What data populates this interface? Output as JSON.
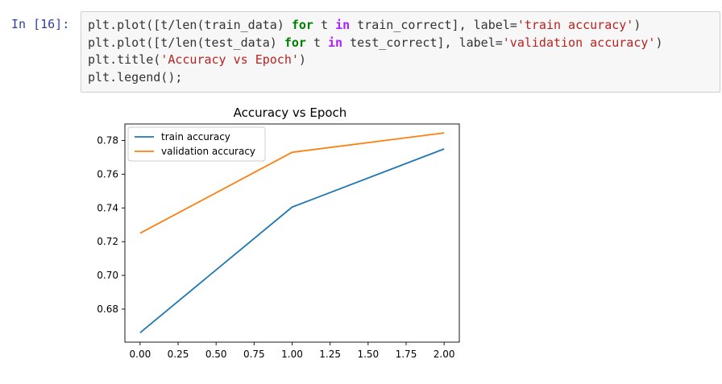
{
  "cell": {
    "prompt": "In [16]:",
    "code_lines": [
      [
        {
          "t": "plt.plot([t/",
          "c": "plain"
        },
        {
          "t": "len",
          "c": "plain"
        },
        {
          "t": "(train_data) ",
          "c": "plain"
        },
        {
          "t": "for",
          "c": "kw"
        },
        {
          "t": " t ",
          "c": "plain"
        },
        {
          "t": "in",
          "c": "op"
        },
        {
          "t": " train_correct], label=",
          "c": "plain"
        },
        {
          "t": "'train accuracy'",
          "c": "str"
        },
        {
          "t": ")",
          "c": "plain"
        }
      ],
      [
        {
          "t": "plt.plot([t/",
          "c": "plain"
        },
        {
          "t": "len",
          "c": "plain"
        },
        {
          "t": "(test_data) ",
          "c": "plain"
        },
        {
          "t": "for",
          "c": "kw"
        },
        {
          "t": " t ",
          "c": "plain"
        },
        {
          "t": "in",
          "c": "op"
        },
        {
          "t": " test_correct], label=",
          "c": "plain"
        },
        {
          "t": "'validation accuracy'",
          "c": "str"
        },
        {
          "t": ")",
          "c": "plain"
        }
      ],
      [
        {
          "t": "plt.title(",
          "c": "plain"
        },
        {
          "t": "'Accuracy vs Epoch'",
          "c": "str"
        },
        {
          "t": ")",
          "c": "plain"
        }
      ],
      [
        {
          "t": "plt.legend();",
          "c": "plain"
        }
      ]
    ]
  },
  "chart_data": {
    "type": "line",
    "title": "Accuracy vs Epoch",
    "xlabel": "",
    "ylabel": "",
    "x": [
      0,
      1,
      2
    ],
    "series": [
      {
        "name": "train accuracy",
        "color": "#1f77b4",
        "values": [
          0.666,
          0.7405,
          0.775
        ]
      },
      {
        "name": "validation accuracy",
        "color": "#ff7f0e",
        "values": [
          0.725,
          0.773,
          0.7845
        ]
      }
    ],
    "xlim": [
      -0.1,
      2.1
    ],
    "ylim": [
      0.6604,
      0.7898
    ],
    "xticks": [
      0.0,
      0.25,
      0.5,
      0.75,
      1.0,
      1.25,
      1.5,
      1.75,
      2.0
    ],
    "xtick_labels": [
      "0.00",
      "0.25",
      "0.50",
      "0.75",
      "1.00",
      "1.25",
      "1.50",
      "1.75",
      "2.00"
    ],
    "yticks": [
      0.68,
      0.7,
      0.72,
      0.74,
      0.76,
      0.78
    ],
    "ytick_labels": [
      "0.68",
      "0.70",
      "0.72",
      "0.74",
      "0.76",
      "0.78"
    ],
    "grid": false,
    "legend_position": "upper left"
  }
}
